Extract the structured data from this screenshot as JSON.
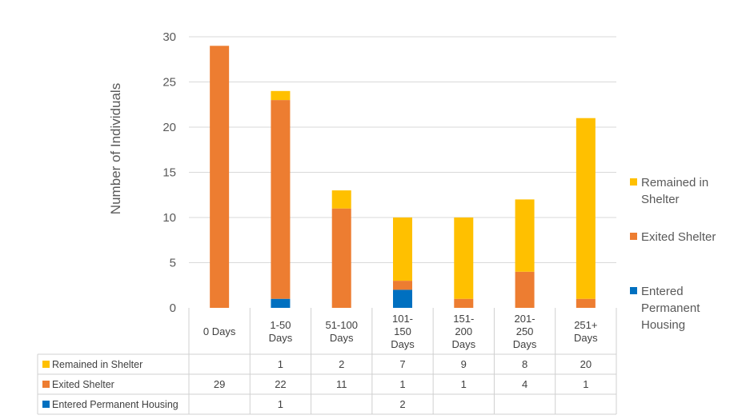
{
  "chart_data": {
    "type": "bar",
    "stacked": true,
    "title": "",
    "xlabel": "",
    "ylabel": "Number of Individuals",
    "ylim": [
      0,
      30
    ],
    "yticks": [
      0,
      5,
      10,
      15,
      20,
      25,
      30
    ],
    "grid": true,
    "legend_position": "right",
    "categories": [
      "0 Days",
      "1-50 Days",
      "51-100 Days",
      "101-150 Days",
      "151-200 Days",
      "201-250 Days",
      "251+ Days"
    ],
    "category_lines": [
      [
        "0 Days"
      ],
      [
        "1-50",
        "Days"
      ],
      [
        "51-100",
        "Days"
      ],
      [
        "101-",
        "150",
        "Days"
      ],
      [
        "151-",
        "200",
        "Days"
      ],
      [
        "201-",
        "250",
        "Days"
      ],
      [
        "251+",
        "Days"
      ]
    ],
    "series": [
      {
        "name": "Remained in Shelter",
        "color": "#FFC000",
        "values": [
          null,
          1,
          2,
          7,
          9,
          8,
          20
        ]
      },
      {
        "name": "Exited Shelter",
        "color": "#ED7D31",
        "values": [
          29,
          22,
          11,
          1,
          1,
          4,
          1
        ]
      },
      {
        "name": "Entered Permanent Housing",
        "color": "#0070C0",
        "values": [
          null,
          1,
          null,
          2,
          null,
          null,
          null
        ]
      }
    ],
    "legend_lines": [
      [
        "Remained in",
        "Shelter"
      ],
      [
        "Exited Shelter"
      ],
      [
        "Entered",
        "Permanent",
        "Housing"
      ]
    ]
  }
}
